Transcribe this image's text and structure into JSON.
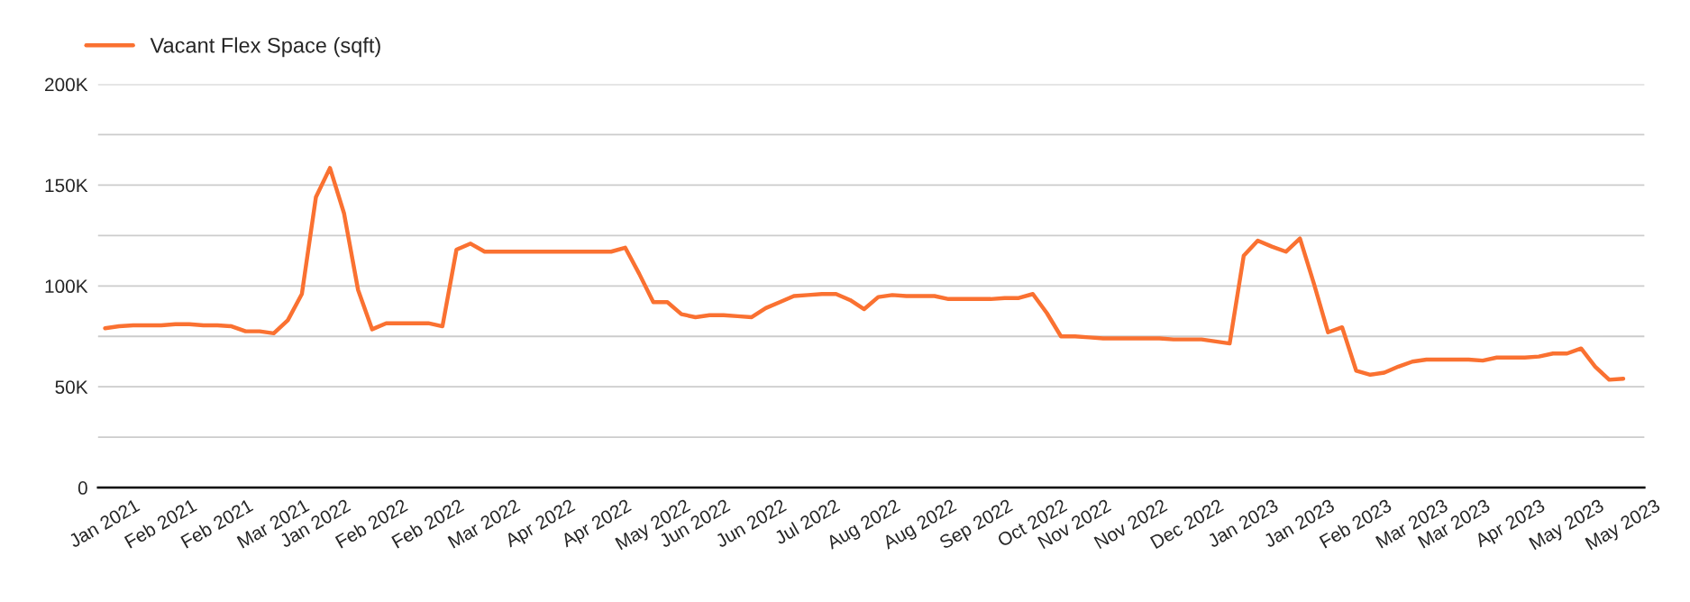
{
  "chart_data": {
    "type": "line",
    "categories": [
      "Jan 2021",
      null,
      null,
      null,
      "Feb 2021",
      null,
      null,
      null,
      "Feb 2021",
      null,
      null,
      null,
      "Mar 2021",
      null,
      null,
      "Jan 2022",
      null,
      null,
      null,
      "Feb 2022",
      null,
      null,
      null,
      "Feb 2022",
      null,
      null,
      null,
      "Mar 2022",
      null,
      null,
      null,
      "Apr 2022",
      null,
      null,
      null,
      "Apr 2022",
      null,
      null,
      null,
      "May 2022",
      null,
      null,
      "Jun 2022",
      null,
      null,
      null,
      "Jun 2022",
      null,
      null,
      null,
      "Jul 2022",
      null,
      null,
      null,
      "Aug 2022",
      null,
      null,
      null,
      "Aug 2022",
      null,
      null,
      null,
      "Sep 2022",
      null,
      null,
      null,
      "Oct 2022",
      null,
      null,
      "Nov 2022",
      null,
      null,
      null,
      "Nov 2022",
      null,
      null,
      null,
      "Dec 2022",
      null,
      null,
      null,
      "Jan 2023",
      null,
      null,
      null,
      "Jan 2023",
      null,
      null,
      null,
      "Feb 2023",
      null,
      null,
      null,
      "Mar 2023",
      null,
      null,
      "Mar 2023",
      null,
      null,
      null,
      "Apr 2023",
      null,
      null,
      null,
      "May 2023",
      null,
      null,
      null,
      "May 2023"
    ],
    "series": [
      {
        "name": "Vacant Flex Space (sqft)",
        "color": "#fa7131",
        "values": [
          79000,
          80000,
          80500,
          80500,
          80500,
          81000,
          81000,
          80500,
          80500,
          80000,
          77500,
          77500,
          76500,
          83000,
          96000,
          144000,
          158500,
          136000,
          98000,
          78500,
          81500,
          81500,
          81500,
          81500,
          80000,
          118000,
          121000,
          117000,
          117000,
          117000,
          117000,
          117000,
          117000,
          117000,
          117000,
          117000,
          117000,
          119000,
          106000,
          92000,
          92000,
          86000,
          84500,
          85500,
          85500,
          85000,
          84500,
          89000,
          92000,
          95000,
          95500,
          96000,
          96000,
          93000,
          88500,
          94500,
          95500,
          95000,
          95000,
          95000,
          93500,
          93500,
          93500,
          93500,
          94000,
          94000,
          96000,
          86500,
          75000,
          75000,
          74500,
          74000,
          74000,
          74000,
          74000,
          74000,
          73500,
          73500,
          73500,
          72500,
          71500,
          115000,
          122500,
          119500,
          117000,
          123500,
          101000,
          77000,
          79500,
          58000,
          56000,
          57000,
          60000,
          62500,
          63500,
          63500,
          63500,
          63500,
          63000,
          64500,
          64500,
          64500,
          65000,
          66500,
          66500,
          69000,
          60000,
          53500,
          54000
        ]
      }
    ],
    "ylim": [
      0,
      200000
    ],
    "yticks": [
      0,
      {
        "value": 25000,
        "label": null
      },
      {
        "value": 50000,
        "label": "50K"
      },
      {
        "value": 75000,
        "label": null
      },
      {
        "value": 100000,
        "label": "100K"
      },
      {
        "value": 125000,
        "label": null
      },
      {
        "value": 150000,
        "label": "150K"
      },
      {
        "value": 175000,
        "label": null
      },
      {
        "value": 200000,
        "label": "200K"
      }
    ],
    "grid": "y",
    "legend": "top left",
    "marker": "none",
    "line_style": "solid"
  }
}
